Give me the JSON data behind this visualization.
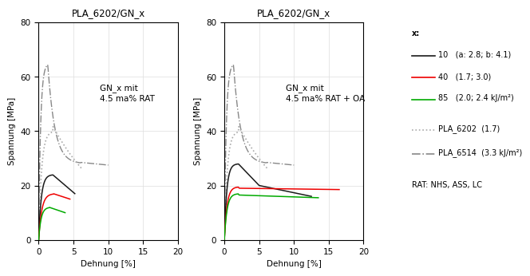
{
  "title": "PLA_6202/GN_x",
  "xlabel": "Dehnung [%]",
  "ylabel": "Spannung [MPa]",
  "xlim": [
    0,
    20
  ],
  "ylim": [
    0,
    80
  ],
  "xticks": [
    0,
    5,
    10,
    15,
    20
  ],
  "yticks": [
    0,
    20,
    40,
    60,
    80
  ],
  "annotation_left": "GN_x mit\n4.5 ma% RAT",
  "annotation_right": "GN_x mit\n4.5 ma% RAT + OA",
  "legend_header": "x:",
  "legend_items": [
    {
      "label": "10   (a: 2.8; b: 4.1)",
      "color": "#1a1a1a",
      "ls": "-",
      "lw": 1.2
    },
    {
      "label": "40   (1.7; 3.0)",
      "color": "#ee0000",
      "ls": "-",
      "lw": 1.2
    },
    {
      "label": "85   (2.0; 2.4 kJ/m²)",
      "color": "#00aa00",
      "ls": "-",
      "lw": 1.2
    }
  ],
  "legend_ref": [
    {
      "label": "PLA_6202  (1.7)",
      "color": "#aaaaaa",
      "ls": ":",
      "lw": 1.2
    },
    {
      "label": "PLA_6514  (3.3 kJ/m²)",
      "color": "#888888",
      "ls": "-.",
      "lw": 1.2
    }
  ],
  "rat_text": "RAT: NHS, ASS, LC",
  "background_color": "#ffffff",
  "grid_color": "#dddddd",
  "color_gn10": "#1a1a1a",
  "color_gn40": "#ee0000",
  "color_gn85": "#00aa00",
  "color_pla6202": "#aaaaaa",
  "color_pla6514": "#888888"
}
